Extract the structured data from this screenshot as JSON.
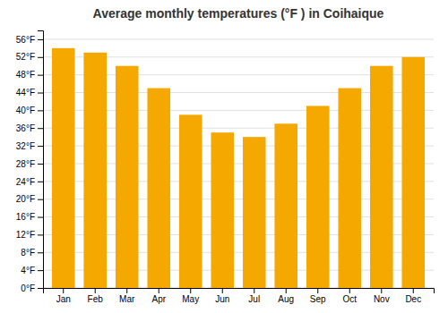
{
  "chart_data": {
    "type": "bar",
    "title": "Average monthly temperatures (°F ) in Coihaique",
    "categories": [
      "Jan",
      "Feb",
      "Mar",
      "Apr",
      "May",
      "Jun",
      "Jul",
      "Aug",
      "Sep",
      "Oct",
      "Nov",
      "Dec"
    ],
    "values": [
      54,
      53,
      50,
      45,
      39,
      35,
      34,
      37,
      41,
      45,
      50,
      52
    ],
    "color": "#F5A800",
    "ylim": [
      0,
      58
    ],
    "yticks": [
      {
        "value": 0,
        "label": "0°F"
      },
      {
        "value": 4,
        "label": "4°F"
      },
      {
        "value": 8,
        "label": "8°F"
      },
      {
        "value": 12,
        "label": "12°F"
      },
      {
        "value": 16,
        "label": "16°F"
      },
      {
        "value": 20,
        "label": "20°F"
      },
      {
        "value": 24,
        "label": "24°F"
      },
      {
        "value": 28,
        "label": "28°F"
      },
      {
        "value": 32,
        "label": "32°F"
      },
      {
        "value": 36,
        "label": "36°F"
      },
      {
        "value": 40,
        "label": "40°F"
      },
      {
        "value": 44,
        "label": "44°F"
      },
      {
        "value": 48,
        "label": "48°F"
      },
      {
        "value": 52,
        "label": "52°F"
      },
      {
        "value": 56,
        "label": "56°F"
      }
    ],
    "grid": true
  }
}
